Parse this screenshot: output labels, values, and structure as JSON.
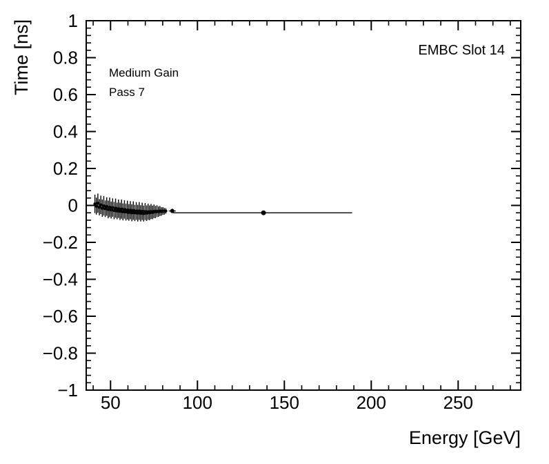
{
  "colors": {
    "foreground": "#000000",
    "background": "#ffffff"
  },
  "chart_data": {
    "type": "scatter",
    "title": "",
    "xlabel": "Energy [GeV]",
    "ylabel": "Time [ns]",
    "xlim": [
      36,
      286
    ],
    "ylim": [
      -1,
      1
    ],
    "grid": false,
    "legend": "none",
    "tick_style": "inward-all-sides",
    "x_major_ticks": [
      50,
      100,
      150,
      200,
      250
    ],
    "x_tick_labels": [
      "50",
      "100",
      "150",
      "200",
      "250"
    ],
    "x_minor_step": 10,
    "y_major_ticks": [
      -1,
      -0.8,
      -0.6,
      -0.4,
      -0.2,
      0,
      0.2,
      0.4,
      0.6,
      0.8,
      1
    ],
    "y_tick_labels": [
      "−1",
      "−0.8",
      "−0.6",
      "−0.4",
      "−0.2",
      "0",
      "0.2",
      "0.4",
      "0.6",
      "0.8",
      "1"
    ],
    "y_minor_step": 0.04,
    "annotations": [
      {
        "text": "EMBC Slot 14"
      },
      {
        "text": "Medium Gain"
      },
      {
        "text": "Pass 7"
      }
    ],
    "series": [
      {
        "name": "timing-vs-energy-cluster",
        "marker": "filled-circle",
        "marker_r": 2.2,
        "color": "#000000",
        "ex": 0.42,
        "points": [
          [
            41.0,
            0.008,
            0.05
          ],
          [
            41.85,
            -0.004,
            0.046
          ],
          [
            42.7,
            0.012,
            0.052
          ],
          [
            43.55,
            -0.01,
            0.044
          ],
          [
            44.4,
            0.003,
            0.05
          ],
          [
            45.25,
            -0.015,
            0.047
          ],
          [
            46.1,
            -0.002,
            0.053
          ],
          [
            46.95,
            -0.018,
            0.045
          ],
          [
            47.8,
            -0.006,
            0.05
          ],
          [
            48.65,
            -0.022,
            0.048
          ],
          [
            49.5,
            -0.01,
            0.053
          ],
          [
            50.35,
            -0.025,
            0.046
          ],
          [
            51.2,
            -0.012,
            0.05
          ],
          [
            52.05,
            -0.028,
            0.047
          ],
          [
            52.9,
            -0.015,
            0.052
          ],
          [
            53.75,
            -0.03,
            0.045
          ],
          [
            54.6,
            -0.018,
            0.05
          ],
          [
            55.45,
            -0.032,
            0.047
          ],
          [
            56.3,
            -0.02,
            0.052
          ],
          [
            57.15,
            -0.035,
            0.046
          ],
          [
            58.0,
            -0.022,
            0.05
          ],
          [
            58.85,
            -0.036,
            0.046
          ],
          [
            59.7,
            -0.025,
            0.051
          ],
          [
            60.55,
            -0.038,
            0.045
          ],
          [
            61.4,
            -0.026,
            0.049
          ],
          [
            62.25,
            -0.04,
            0.046
          ],
          [
            63.1,
            -0.028,
            0.05
          ],
          [
            63.95,
            -0.041,
            0.044
          ],
          [
            64.8,
            -0.03,
            0.048
          ],
          [
            65.65,
            -0.042,
            0.045
          ],
          [
            66.5,
            -0.03,
            0.048
          ],
          [
            67.35,
            -0.043,
            0.044
          ],
          [
            68.2,
            -0.032,
            0.047
          ],
          [
            69.05,
            -0.044,
            0.043
          ],
          [
            69.9,
            -0.033,
            0.046
          ],
          [
            70.75,
            -0.042,
            0.042
          ],
          [
            71.6,
            -0.034,
            0.044
          ],
          [
            72.45,
            -0.04,
            0.04
          ],
          [
            73.3,
            -0.033,
            0.041
          ],
          [
            74.15,
            -0.038,
            0.037
          ],
          [
            75.0,
            -0.032,
            0.037
          ],
          [
            75.85,
            -0.036,
            0.033
          ],
          [
            76.7,
            -0.031,
            0.032
          ],
          [
            77.55,
            -0.034,
            0.028
          ],
          [
            78.4,
            -0.03,
            0.027
          ],
          [
            79.25,
            -0.033,
            0.023
          ],
          [
            80.1,
            -0.03,
            0.021
          ],
          [
            80.95,
            -0.032,
            0.018
          ],
          [
            81.8,
            -0.03,
            0.015
          ]
        ]
      },
      {
        "name": "timing-vs-energy-mid",
        "marker": "filled-circle",
        "marker_r": 3,
        "color": "#000000",
        "points": [
          {
            "x": 85.5,
            "y": -0.03,
            "exl": 2,
            "exh": 2,
            "ey": 0.012
          }
        ]
      },
      {
        "name": "timing-vs-energy-wide-bin",
        "marker": "filled-circle",
        "marker_r": 3.5,
        "color": "#000000",
        "points": [
          {
            "x": 138,
            "y": -0.04,
            "exl": 52,
            "exh": 51,
            "ey": 0.01
          }
        ]
      }
    ]
  }
}
